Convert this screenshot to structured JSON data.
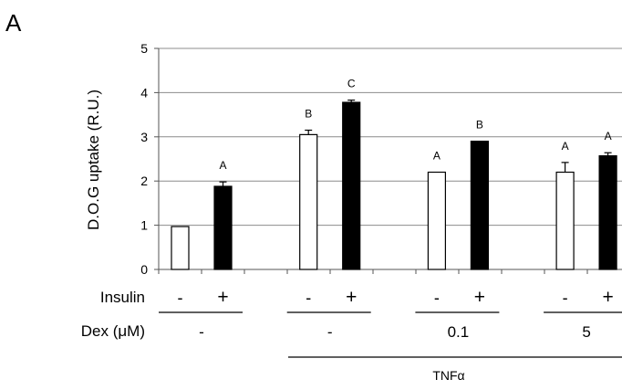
{
  "panel_label": "A",
  "chart_data": {
    "type": "bar",
    "ylabel": "D.O.G uptake (R.U.)",
    "ylim": [
      0,
      5
    ],
    "yticks": [
      "0",
      "1",
      "2",
      "3",
      "4",
      "5"
    ],
    "grid": true,
    "groups": [
      {
        "dex": "-",
        "tnf": false,
        "bars": [
          {
            "insulin": "-",
            "fill": "white",
            "value": 0.97,
            "error": 0,
            "letter": ""
          },
          {
            "insulin": "+",
            "fill": "black",
            "value": 1.88,
            "error": 0.1,
            "letter": "A"
          }
        ]
      },
      {
        "dex": "-",
        "tnf": true,
        "bars": [
          {
            "insulin": "-",
            "fill": "white",
            "value": 3.05,
            "error": 0.1,
            "letter": "B"
          },
          {
            "insulin": "+",
            "fill": "black",
            "value": 3.78,
            "error": 0.05,
            "letter": "C"
          }
        ]
      },
      {
        "dex": "0.1",
        "tnf": true,
        "bars": [
          {
            "insulin": "-",
            "fill": "white",
            "value": 2.2,
            "error": 0,
            "letter": "A"
          },
          {
            "insulin": "+",
            "fill": "black",
            "value": 2.9,
            "error": 0,
            "letter": "B"
          }
        ]
      },
      {
        "dex": "5",
        "tnf": true,
        "bars": [
          {
            "insulin": "-",
            "fill": "white",
            "value": 2.2,
            "error": 0.22,
            "letter": "A"
          },
          {
            "insulin": "+",
            "fill": "black",
            "value": 2.57,
            "error": 0.07,
            "letter": "A"
          }
        ]
      }
    ],
    "row_labels": {
      "insulin": "Insulin",
      "dex": "Dex (μM)"
    },
    "tnf_label": "TNFα"
  }
}
